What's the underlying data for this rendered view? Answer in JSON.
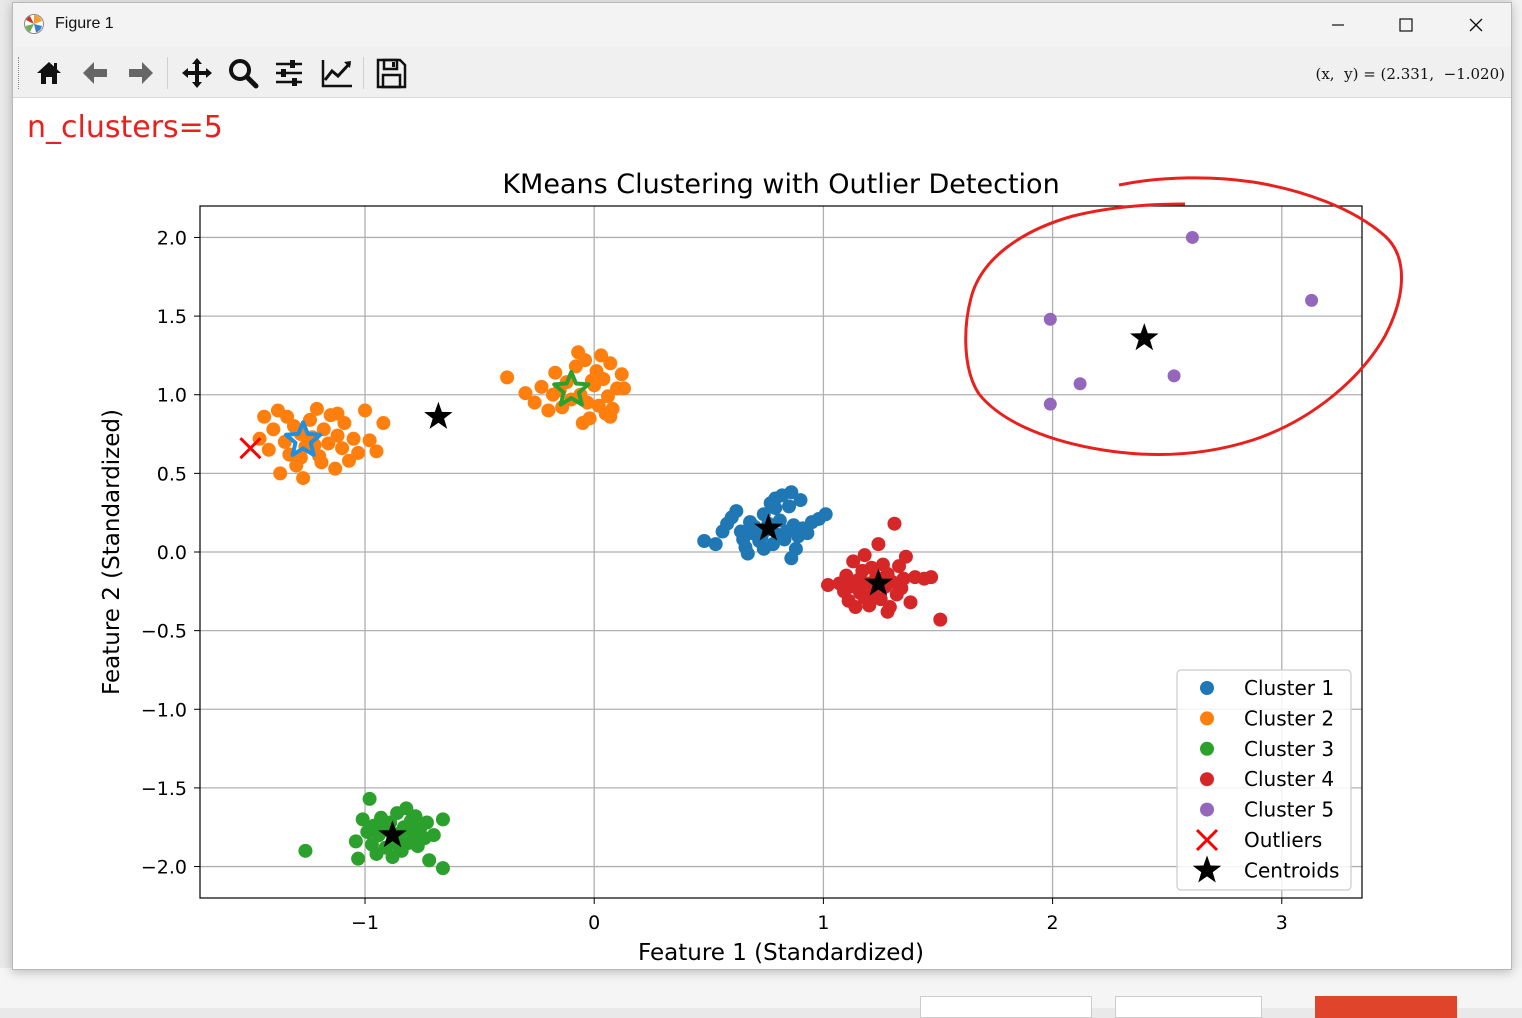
{
  "window": {
    "title": "Figure 1"
  },
  "toolbar": {
    "buttons": [
      "home-icon",
      "back-arrow-icon",
      "forward-arrow-icon",
      "pan-icon",
      "zoom-icon",
      "configure-subplots-icon",
      "edit-axis-icon",
      "save-icon"
    ],
    "coord_readout": "(x,  y) = (2.331,  −1.020)"
  },
  "overlay_text": "n_clusters=5",
  "colors": {
    "cluster1": "#1f77b4",
    "cluster2": "#ff7f0e",
    "cluster3": "#2ca02c",
    "cluster4": "#d62728",
    "cluster5": "#9467bd",
    "outlier": "#ff0000",
    "centroid": "#000000",
    "annotation": "#e8201e"
  },
  "chart_data": {
    "type": "scatter",
    "title": "KMeans Clustering with Outlier Detection",
    "xlabel": "Feature 1 (Standardized)",
    "ylabel": "Feature 2 (Standardized)",
    "xlim": [
      -1.72,
      3.35
    ],
    "ylim": [
      -2.2,
      2.2
    ],
    "xticks": [
      -1,
      0,
      1,
      2,
      3
    ],
    "xtick_labels": [
      "−1",
      "0",
      "1",
      "2",
      "3"
    ],
    "yticks": [
      2.0,
      1.5,
      1.0,
      0.5,
      0.0,
      -0.5,
      -1.0,
      -1.5,
      -2.0
    ],
    "ytick_labels": [
      "2.0",
      "1.5",
      "1.0",
      "0.5",
      "0.0",
      "−0.5",
      "−1.0",
      "−1.5",
      "−2.0"
    ],
    "grid": true,
    "legend_position": "lower-right",
    "legend": [
      "Cluster 1",
      "Cluster 2",
      "Cluster 3",
      "Cluster 4",
      "Cluster 5",
      "Outliers",
      "Centroids"
    ],
    "series": [
      {
        "name": "Cluster 1",
        "points": [
          [
            0.48,
            0.07
          ],
          [
            0.53,
            0.05
          ],
          [
            0.56,
            0.13
          ],
          [
            0.58,
            0.18
          ],
          [
            0.6,
            0.22
          ],
          [
            0.62,
            0.26
          ],
          [
            0.64,
            0.13
          ],
          [
            0.65,
            0.08
          ],
          [
            0.66,
            0.03
          ],
          [
            0.68,
            0.19
          ],
          [
            0.69,
            0.12
          ],
          [
            0.7,
            0.16
          ],
          [
            0.72,
            0.07
          ],
          [
            0.73,
            0.1
          ],
          [
            0.74,
            0.24
          ],
          [
            0.75,
            0.14
          ],
          [
            0.76,
            0.18
          ],
          [
            0.77,
            0.31
          ],
          [
            0.78,
            0.05
          ],
          [
            0.79,
            0.34
          ],
          [
            0.8,
            0.11
          ],
          [
            0.81,
            0.2
          ],
          [
            0.82,
            0.36
          ],
          [
            0.83,
            0.08
          ],
          [
            0.84,
            0.13
          ],
          [
            0.85,
            0.29
          ],
          [
            0.86,
            0.38
          ],
          [
            0.87,
            0.17
          ],
          [
            0.88,
            0.02
          ],
          [
            0.89,
            0.1
          ],
          [
            0.9,
            0.33
          ],
          [
            0.91,
            0.15
          ],
          [
            0.93,
            0.12
          ],
          [
            0.95,
            0.19
          ],
          [
            0.98,
            0.21
          ],
          [
            1.01,
            0.24
          ],
          [
            0.86,
            -0.04
          ],
          [
            0.67,
            -0.01
          ],
          [
            0.79,
            0.28
          ],
          [
            0.74,
            0.02
          ]
        ]
      },
      {
        "name": "Cluster 2",
        "points": [
          [
            -1.46,
            0.72
          ],
          [
            -1.44,
            0.86
          ],
          [
            -1.42,
            0.65
          ],
          [
            -1.4,
            0.78
          ],
          [
            -1.38,
            0.9
          ],
          [
            -1.37,
            0.5
          ],
          [
            -1.35,
            0.7
          ],
          [
            -1.33,
            0.62
          ],
          [
            -1.31,
            0.8
          ],
          [
            -1.3,
            0.55
          ],
          [
            -1.28,
            0.75
          ],
          [
            -1.27,
            0.47
          ],
          [
            -1.26,
            0.67
          ],
          [
            -1.24,
            0.84
          ],
          [
            -1.23,
            0.73
          ],
          [
            -1.21,
            0.91
          ],
          [
            -1.2,
            0.61
          ],
          [
            -1.18,
            0.78
          ],
          [
            -1.16,
            0.69
          ],
          [
            -1.15,
            0.87
          ],
          [
            -1.13,
            0.53
          ],
          [
            -1.12,
            0.74
          ],
          [
            -1.1,
            0.66
          ],
          [
            -1.09,
            0.82
          ],
          [
            -1.07,
            0.58
          ],
          [
            -1.05,
            0.72
          ],
          [
            -1.03,
            0.63
          ],
          [
            -1.0,
            0.9
          ],
          [
            -0.98,
            0.71
          ],
          [
            -0.95,
            0.64
          ],
          [
            -0.92,
            0.82
          ],
          [
            -1.28,
            0.6
          ],
          [
            -1.34,
            0.86
          ],
          [
            -1.19,
            0.57
          ],
          [
            -1.22,
            0.68
          ],
          [
            -1.12,
            0.88
          ],
          [
            -0.38,
            1.11
          ],
          [
            -0.3,
            1.01
          ],
          [
            -0.26,
            0.95
          ],
          [
            -0.23,
            1.05
          ],
          [
            -0.2,
            0.9
          ],
          [
            -0.17,
            1.14
          ],
          [
            -0.15,
            1.03
          ],
          [
            -0.14,
            0.92
          ],
          [
            -0.12,
            1.08
          ],
          [
            -0.1,
            0.97
          ],
          [
            -0.08,
            1.18
          ],
          [
            -0.06,
            1.0
          ],
          [
            -0.05,
            0.82
          ],
          [
            -0.04,
            1.22
          ],
          [
            -0.02,
            0.85
          ],
          [
            0.0,
            1.06
          ],
          [
            0.01,
            1.15
          ],
          [
            0.02,
            0.93
          ],
          [
            0.03,
            1.25
          ],
          [
            0.04,
            1.1
          ],
          [
            0.05,
            0.88
          ],
          [
            0.06,
            0.99
          ],
          [
            0.07,
            1.2
          ],
          [
            0.08,
            0.91
          ],
          [
            0.1,
            1.04
          ],
          [
            0.12,
            1.13
          ],
          [
            0.13,
            1.04
          ],
          [
            -0.07,
            1.27
          ],
          [
            -0.03,
            0.95
          ],
          [
            0.07,
            0.86
          ],
          [
            -0.18,
            1.0
          ],
          [
            -0.01,
            1.09
          ]
        ]
      },
      {
        "name": "Cluster 3",
        "points": [
          [
            -1.26,
            -1.9
          ],
          [
            -1.04,
            -1.84
          ],
          [
            -1.03,
            -1.95
          ],
          [
            -1.01,
            -1.7
          ],
          [
            -0.99,
            -1.78
          ],
          [
            -0.98,
            -1.57
          ],
          [
            -0.97,
            -1.86
          ],
          [
            -0.96,
            -1.74
          ],
          [
            -0.94,
            -1.8
          ],
          [
            -0.93,
            -1.69
          ],
          [
            -0.91,
            -1.88
          ],
          [
            -0.9,
            -1.77
          ],
          [
            -0.89,
            -1.72
          ],
          [
            -0.88,
            -1.94
          ],
          [
            -0.87,
            -1.83
          ],
          [
            -0.86,
            -1.66
          ],
          [
            -0.85,
            -1.79
          ],
          [
            -0.84,
            -1.9
          ],
          [
            -0.83,
            -1.75
          ],
          [
            -0.82,
            -1.63
          ],
          [
            -0.81,
            -1.85
          ],
          [
            -0.8,
            -1.71
          ],
          [
            -0.79,
            -1.81
          ],
          [
            -0.78,
            -1.68
          ],
          [
            -0.77,
            -1.87
          ],
          [
            -0.76,
            -1.76
          ],
          [
            -0.74,
            -1.82
          ],
          [
            -0.73,
            -1.72
          ],
          [
            -0.72,
            -1.96
          ],
          [
            -0.7,
            -1.8
          ],
          [
            -0.66,
            -2.01
          ],
          [
            -0.66,
            -1.7
          ],
          [
            -0.95,
            -1.92
          ],
          [
            -0.86,
            -1.86
          ],
          [
            -0.8,
            -1.77
          ],
          [
            -0.92,
            -1.73
          ]
        ]
      },
      {
        "name": "Cluster 4",
        "points": [
          [
            1.02,
            -0.21
          ],
          [
            1.07,
            -0.2
          ],
          [
            1.09,
            -0.25
          ],
          [
            1.1,
            -0.15
          ],
          [
            1.11,
            -0.31
          ],
          [
            1.12,
            -0.22
          ],
          [
            1.13,
            -0.06
          ],
          [
            1.14,
            -0.35
          ],
          [
            1.15,
            -0.18
          ],
          [
            1.16,
            -0.26
          ],
          [
            1.17,
            -0.12
          ],
          [
            1.18,
            -0.29
          ],
          [
            1.19,
            -0.2
          ],
          [
            1.2,
            -0.34
          ],
          [
            1.21,
            -0.1
          ],
          [
            1.22,
            -0.24
          ],
          [
            1.23,
            -0.16
          ],
          [
            1.24,
            0.05
          ],
          [
            1.25,
            -0.3
          ],
          [
            1.26,
            -0.08
          ],
          [
            1.27,
            -0.22
          ],
          [
            1.28,
            -0.14
          ],
          [
            1.29,
            -0.35
          ],
          [
            1.3,
            -0.19
          ],
          [
            1.31,
            0.18
          ],
          [
            1.32,
            -0.27
          ],
          [
            1.33,
            -0.09
          ],
          [
            1.34,
            -0.23
          ],
          [
            1.35,
            -0.17
          ],
          [
            1.36,
            -0.03
          ],
          [
            1.38,
            -0.32
          ],
          [
            1.4,
            -0.16
          ],
          [
            1.44,
            -0.17
          ],
          [
            1.47,
            -0.16
          ],
          [
            1.51,
            -0.43
          ],
          [
            1.18,
            -0.02
          ],
          [
            1.28,
            -0.38
          ],
          [
            1.22,
            -0.28
          ]
        ]
      },
      {
        "name": "Cluster 5",
        "points": [
          [
            1.99,
            1.48
          ],
          [
            1.99,
            0.94
          ],
          [
            2.12,
            1.07
          ],
          [
            2.53,
            1.12
          ],
          [
            2.61,
            2.0
          ],
          [
            3.13,
            1.6
          ]
        ]
      },
      {
        "name": "Outliers",
        "marker": "x",
        "points": [
          [
            -1.5,
            0.66
          ]
        ]
      },
      {
        "name": "Centroids",
        "marker": "star",
        "points": [
          [
            0.76,
            0.15
          ],
          [
            1.24,
            -0.2
          ],
          [
            -0.88,
            -1.8
          ],
          [
            2.4,
            1.36
          ],
          [
            -0.68,
            0.86
          ]
        ]
      },
      {
        "name": "",
        "marker": "star-outline",
        "color": "#1f8fe0",
        "points": [
          [
            -1.27,
            0.71
          ]
        ]
      },
      {
        "name": "",
        "marker": "star-outline",
        "color": "#2ca02c",
        "points": [
          [
            -0.1,
            1.03
          ]
        ]
      }
    ]
  }
}
